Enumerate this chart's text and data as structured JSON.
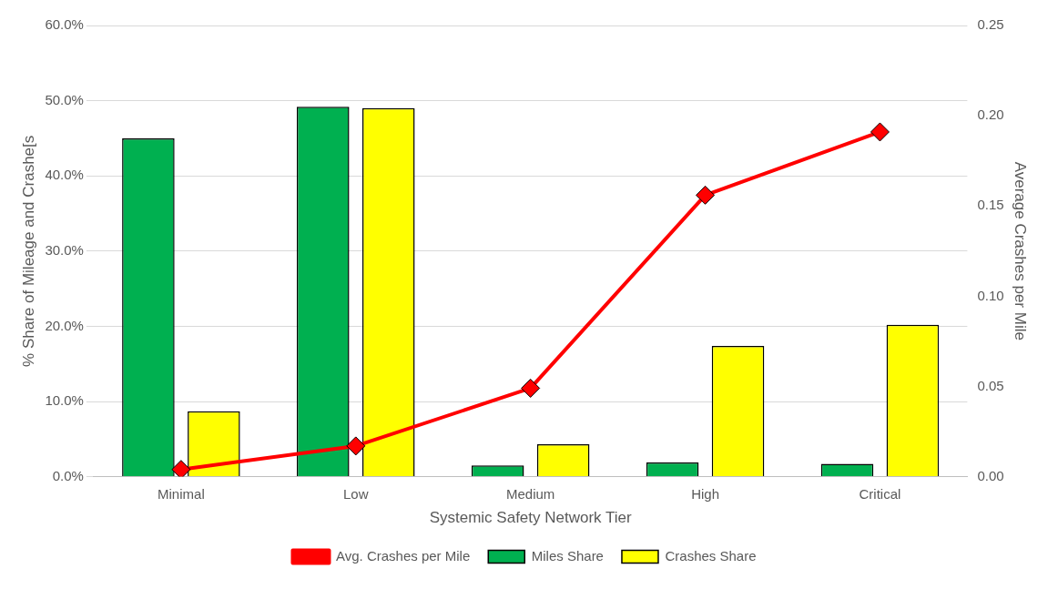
{
  "chart_data": {
    "type": "bar",
    "xlabel": "Systemic Safety Network Tier",
    "ylabel": "% Share of Mileage and Crashe[s",
    "y2label": "Average Crashes per Mile",
    "categories": [
      "Minimal",
      "Low",
      "Medium",
      "High",
      "Critical"
    ],
    "series": [
      {
        "name": "Miles Share",
        "color": "#00b050",
        "values": [
          45.0,
          49.2,
          1.5,
          1.9,
          1.7
        ]
      },
      {
        "name": "Crashes Share",
        "color": "#ffff00",
        "values": [
          8.7,
          49.0,
          4.3,
          17.4,
          20.2
        ]
      },
      {
        "name": "Avg. Crashes per Mile",
        "type": "line",
        "axis": "y2",
        "color": "#ff0000",
        "marker": "diamond",
        "values": [
          0.004,
          0.017,
          0.049,
          0.156,
          0.191
        ]
      }
    ],
    "ylim": [
      0,
      60
    ],
    "yticks": [
      {
        "value": 0,
        "label": "0.0%"
      },
      {
        "value": 10,
        "label": "10.0%"
      },
      {
        "value": 20,
        "label": "20.0%"
      },
      {
        "value": 30,
        "label": "30.0%"
      },
      {
        "value": 40,
        "label": "40.0%"
      },
      {
        "value": 50,
        "label": "50.0%"
      },
      {
        "value": 60,
        "label": "60.0%"
      }
    ],
    "y2lim": [
      0,
      0.25
    ],
    "y2ticks": [
      {
        "value": 0,
        "label": "0.00"
      },
      {
        "value": 0.05,
        "label": "0.05"
      },
      {
        "value": 0.1,
        "label": "0.10"
      },
      {
        "value": 0.15,
        "label": "0.15"
      },
      {
        "value": 0.2,
        "label": "0.20"
      },
      {
        "value": 0.25,
        "label": "0.25"
      }
    ],
    "grid": "y",
    "legend": "bottom"
  }
}
